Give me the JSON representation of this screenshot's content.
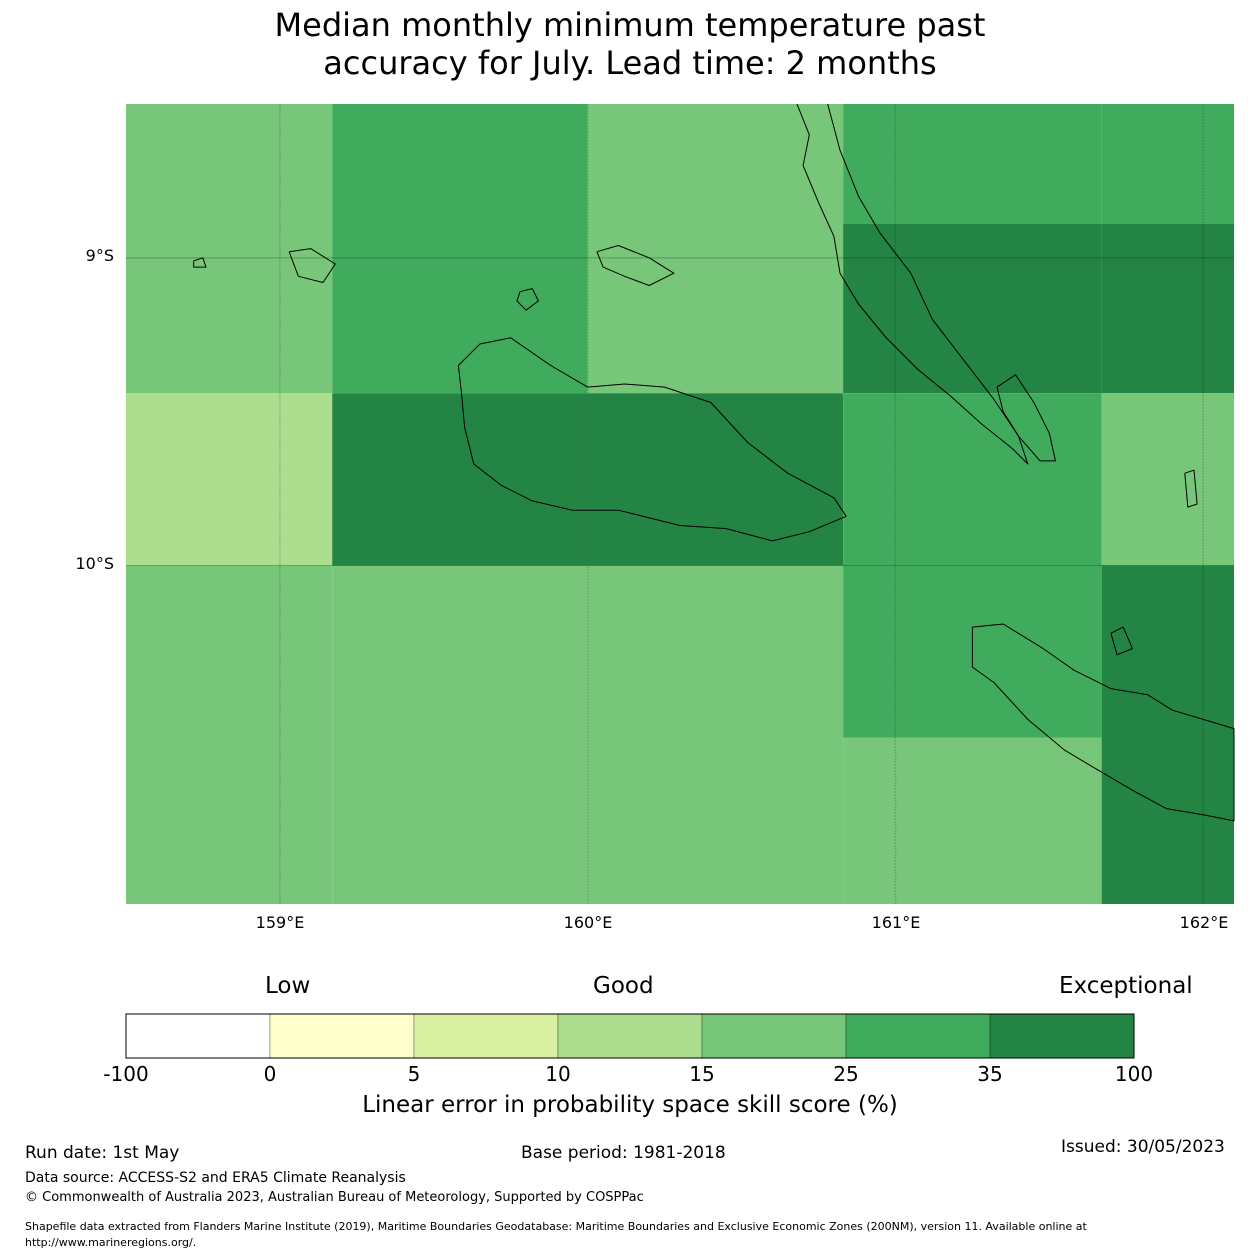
{
  "title": {
    "line1": "Median monthly minimum temperature past",
    "line2": "accuracy for July. Lead time: 2 months"
  },
  "map": {
    "lat_labels": [
      "9°S",
      "10°S"
    ],
    "lon_labels": [
      "159°E",
      "160°E",
      "161°E",
      "162°E"
    ],
    "extent": {
      "lon_min": 158.5,
      "lon_max": 162.1,
      "lat_min": -11.1,
      "lat_max": -8.5
    },
    "cells": [
      {
        "lon": [
          158.5,
          159.17
        ],
        "lat": [
          -8.5,
          -8.89
        ],
        "cls": 4
      },
      {
        "lon": [
          158.5,
          159.17
        ],
        "lat": [
          -8.89,
          -9.44
        ],
        "cls": 4
      },
      {
        "lon": [
          158.5,
          159.17
        ],
        "lat": [
          -9.44,
          -10.0
        ],
        "cls": 3
      },
      {
        "lon": [
          158.5,
          159.17
        ],
        "lat": [
          -10.0,
          -11.1
        ],
        "cls": 4
      },
      {
        "lon": [
          159.17,
          160.0
        ],
        "lat": [
          -8.5,
          -8.89
        ],
        "cls": 5
      },
      {
        "lon": [
          159.17,
          160.0
        ],
        "lat": [
          -8.89,
          -9.44
        ],
        "cls": 5
      },
      {
        "lon": [
          159.17,
          160.0
        ],
        "lat": [
          -9.44,
          -10.0
        ],
        "cls": 6
      },
      {
        "lon": [
          159.17,
          160.0
        ],
        "lat": [
          -10.0,
          -11.1
        ],
        "cls": 4
      },
      {
        "lon": [
          160.0,
          160.83
        ],
        "lat": [
          -8.5,
          -8.89
        ],
        "cls": 4
      },
      {
        "lon": [
          160.0,
          160.83
        ],
        "lat": [
          -8.89,
          -9.44
        ],
        "cls": 4
      },
      {
        "lon": [
          160.0,
          160.83
        ],
        "lat": [
          -9.44,
          -10.0
        ],
        "cls": 6
      },
      {
        "lon": [
          160.0,
          160.83
        ],
        "lat": [
          -10.0,
          -11.1
        ],
        "cls": 4
      },
      {
        "lon": [
          160.83,
          161.67
        ],
        "lat": [
          -8.5,
          -8.89
        ],
        "cls": 5
      },
      {
        "lon": [
          160.83,
          161.67
        ],
        "lat": [
          -8.89,
          -9.44
        ],
        "cls": 6
      },
      {
        "lon": [
          160.83,
          161.67
        ],
        "lat": [
          -9.44,
          -10.0
        ],
        "cls": 5
      },
      {
        "lon": [
          160.83,
          161.67
        ],
        "lat": [
          -10.0,
          -10.56
        ],
        "cls": 5
      },
      {
        "lon": [
          160.83,
          161.67
        ],
        "lat": [
          -10.56,
          -11.1
        ],
        "cls": 4
      },
      {
        "lon": [
          161.67,
          162.1
        ],
        "lat": [
          -8.5,
          -8.89
        ],
        "cls": 5
      },
      {
        "lon": [
          161.67,
          162.1
        ],
        "lat": [
          -8.89,
          -9.44
        ],
        "cls": 6
      },
      {
        "lon": [
          161.67,
          162.1
        ],
        "lat": [
          -9.44,
          -10.0
        ],
        "cls": 4
      },
      {
        "lon": [
          161.67,
          162.1
        ],
        "lat": [
          -10.0,
          -11.1
        ],
        "cls": 6
      }
    ],
    "coastlines": [
      {
        "name": "guadalcanal",
        "points": [
          [
            159.58,
            -9.35
          ],
          [
            159.65,
            -9.28
          ],
          [
            159.75,
            -9.26
          ],
          [
            159.88,
            -9.35
          ],
          [
            160.0,
            -9.42
          ],
          [
            160.12,
            -9.41
          ],
          [
            160.25,
            -9.42
          ],
          [
            160.4,
            -9.47
          ],
          [
            160.52,
            -9.6
          ],
          [
            160.65,
            -9.7
          ],
          [
            160.8,
            -9.78
          ],
          [
            160.84,
            -9.84
          ],
          [
            160.72,
            -9.89
          ],
          [
            160.6,
            -9.92
          ],
          [
            160.45,
            -9.88
          ],
          [
            160.3,
            -9.87
          ],
          [
            160.1,
            -9.82
          ],
          [
            159.95,
            -9.82
          ],
          [
            159.82,
            -9.79
          ],
          [
            159.72,
            -9.74
          ],
          [
            159.63,
            -9.67
          ],
          [
            159.6,
            -9.55
          ],
          [
            159.59,
            -9.44
          ],
          [
            159.58,
            -9.35
          ]
        ]
      },
      {
        "name": "malaita",
        "points": [
          [
            160.68,
            -8.5
          ],
          [
            160.72,
            -8.6
          ],
          [
            160.7,
            -8.7
          ],
          [
            160.75,
            -8.82
          ],
          [
            160.8,
            -8.93
          ],
          [
            160.82,
            -9.05
          ],
          [
            160.88,
            -9.15
          ],
          [
            160.97,
            -9.26
          ],
          [
            161.07,
            -9.36
          ],
          [
            161.18,
            -9.45
          ],
          [
            161.28,
            -9.54
          ],
          [
            161.38,
            -9.62
          ],
          [
            161.43,
            -9.67
          ],
          [
            161.4,
            -9.58
          ],
          [
            161.32,
            -9.46
          ],
          [
            161.22,
            -9.33
          ],
          [
            161.12,
            -9.2
          ],
          [
            161.05,
            -9.05
          ],
          [
            160.95,
            -8.92
          ],
          [
            160.88,
            -8.8
          ],
          [
            160.82,
            -8.65
          ],
          [
            160.78,
            -8.5
          ]
        ]
      },
      {
        "name": "small-malaita",
        "points": [
          [
            161.33,
            -9.42
          ],
          [
            161.39,
            -9.38
          ],
          [
            161.45,
            -9.47
          ],
          [
            161.5,
            -9.57
          ],
          [
            161.52,
            -9.66
          ],
          [
            161.47,
            -9.66
          ],
          [
            161.4,
            -9.58
          ],
          [
            161.35,
            -9.5
          ],
          [
            161.33,
            -9.42
          ]
        ]
      },
      {
        "name": "makira",
        "points": [
          [
            161.25,
            -10.2
          ],
          [
            161.35,
            -10.19
          ],
          [
            161.48,
            -10.27
          ],
          [
            161.58,
            -10.34
          ],
          [
            161.7,
            -10.4
          ],
          [
            161.82,
            -10.42
          ],
          [
            161.9,
            -10.47
          ],
          [
            162.0,
            -10.5
          ],
          [
            162.1,
            -10.53
          ],
          [
            162.1,
            -10.83
          ],
          [
            162.0,
            -10.81
          ],
          [
            161.88,
            -10.79
          ],
          [
            161.77,
            -10.73
          ],
          [
            161.65,
            -10.66
          ],
          [
            161.55,
            -10.6
          ],
          [
            161.43,
            -10.5
          ],
          [
            161.32,
            -10.38
          ],
          [
            161.25,
            -10.33
          ],
          [
            161.25,
            -10.2
          ]
        ]
      },
      {
        "name": "nggela",
        "points": [
          [
            160.03,
            -8.98
          ],
          [
            160.1,
            -8.96
          ],
          [
            160.2,
            -9.0
          ],
          [
            160.28,
            -9.05
          ],
          [
            160.2,
            -9.09
          ],
          [
            160.12,
            -9.06
          ],
          [
            160.05,
            -9.03
          ],
          [
            160.03,
            -8.98
          ]
        ]
      },
      {
        "name": "savo",
        "points": [
          [
            159.78,
            -9.11
          ],
          [
            159.82,
            -9.1
          ],
          [
            159.84,
            -9.14
          ],
          [
            159.8,
            -9.17
          ],
          [
            159.77,
            -9.14
          ],
          [
            159.78,
            -9.11
          ]
        ]
      },
      {
        "name": "russell",
        "points": [
          [
            159.03,
            -8.98
          ],
          [
            159.1,
            -8.97
          ],
          [
            159.18,
            -9.02
          ],
          [
            159.14,
            -9.08
          ],
          [
            159.06,
            -9.06
          ],
          [
            159.03,
            -8.98
          ]
        ]
      },
      {
        "name": "small-island-west",
        "points": [
          [
            158.72,
            -9.01
          ],
          [
            158.75,
            -9.0
          ],
          [
            158.76,
            -9.03
          ],
          [
            158.72,
            -9.03
          ],
          [
            158.72,
            -9.01
          ]
        ]
      },
      {
        "name": "small-island-east",
        "points": [
          [
            161.94,
            -9.7
          ],
          [
            161.97,
            -9.69
          ],
          [
            161.98,
            -9.8
          ],
          [
            161.95,
            -9.81
          ],
          [
            161.94,
            -9.7
          ]
        ]
      },
      {
        "name": "ulawa",
        "points": [
          [
            161.7,
            -10.22
          ],
          [
            161.74,
            -10.2
          ],
          [
            161.77,
            -10.27
          ],
          [
            161.72,
            -10.29
          ],
          [
            161.7,
            -10.22
          ]
        ]
      }
    ]
  },
  "colorbar": {
    "categories": [
      "Low",
      "Good",
      "Exceptional"
    ],
    "ticks": [
      "-100",
      "0",
      "5",
      "10",
      "15",
      "25",
      "35",
      "100"
    ],
    "colors": [
      "#ffffff",
      "#ffffcc",
      "#d9f0a3",
      "#addd8e",
      "#78c679",
      "#41ab5d",
      "#238443"
    ],
    "label": "Linear error in probability space skill score (%)"
  },
  "footer": {
    "run_date": "Run date: 1st May",
    "base_period": "Base period: 1981-2018",
    "issued": "Issued: 30/05/2023",
    "data_source": "Data source: ACCESS-S2 and ERA5 Climate Reanalysis",
    "copyright": "© Commonwealth of Australia 2023, Australian Bureau of Meteorology, Supported by COSPPac",
    "shapefile_line1": "Shapefile data extracted from Flanders Marine Institute (2019), Maritime Boundaries Geodatabase: Maritime Boundaries and Exclusive Economic Zones (200NM), version 11. Available online at",
    "shapefile_line2": "http://www.marineregions.org/."
  }
}
